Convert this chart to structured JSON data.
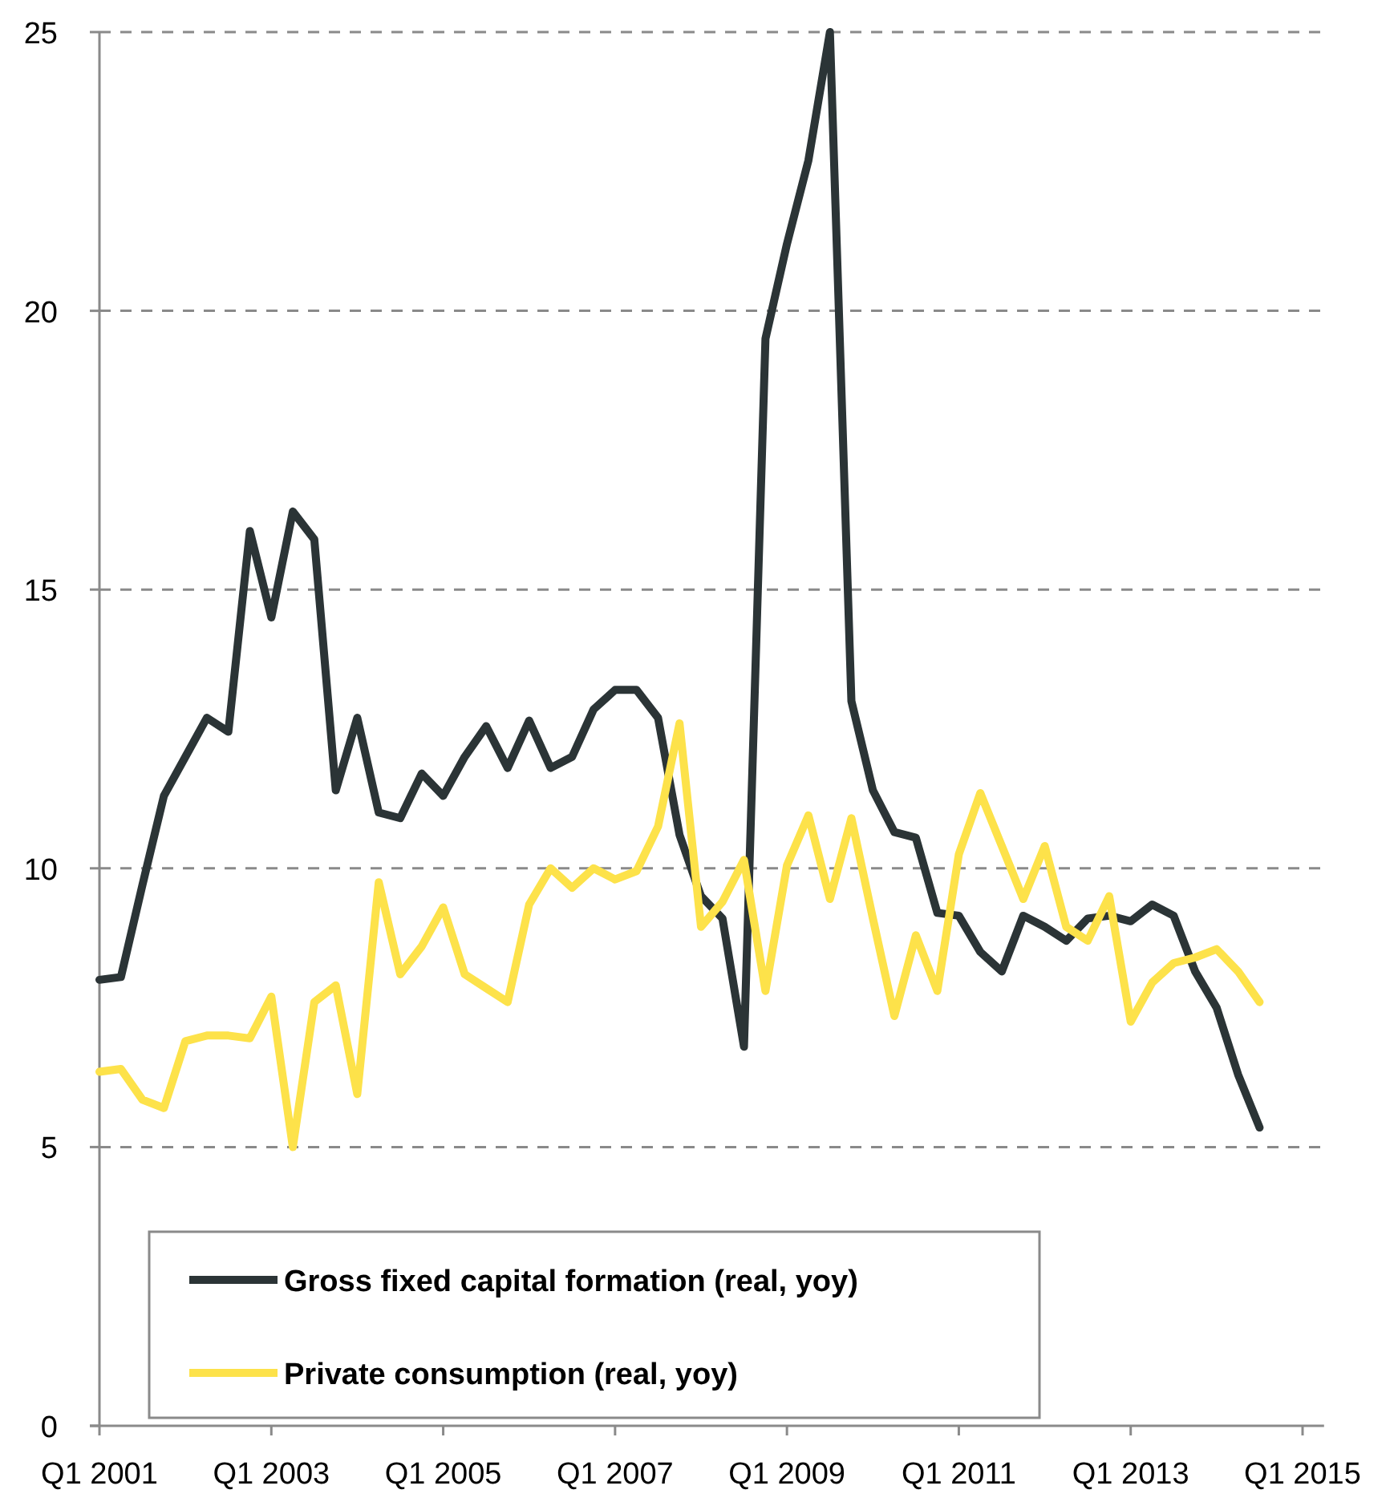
{
  "chart_data": {
    "type": "line",
    "ylim": [
      0,
      25
    ],
    "yticks": [
      0,
      5,
      10,
      15,
      20,
      25
    ],
    "categories": [
      "Q1 2001",
      null,
      null,
      null,
      null,
      null,
      null,
      null,
      "Q1 2003",
      null,
      null,
      null,
      null,
      null,
      null,
      null,
      "Q1 2005",
      null,
      null,
      null,
      null,
      null,
      null,
      null,
      "Q1 2007",
      null,
      null,
      null,
      null,
      null,
      null,
      null,
      "Q1 2009",
      null,
      null,
      null,
      null,
      null,
      null,
      null,
      "Q1 2011",
      null,
      null,
      null,
      null,
      null,
      null,
      null,
      "Q1 2013",
      null,
      null,
      null,
      null,
      null,
      null,
      null,
      "Q1 2015"
    ],
    "series": [
      {
        "name": "Gross fixed capital formation (real, yoy)",
        "color": "#2b3436",
        "values": [
          8.0,
          8.05,
          9.7,
          11.3,
          12.0,
          12.7,
          12.45,
          16.05,
          14.5,
          16.4,
          15.9,
          11.4,
          12.7,
          11.0,
          10.9,
          11.7,
          11.3,
          12.0,
          12.55,
          11.8,
          12.65,
          11.8,
          12.0,
          12.85,
          13.2,
          13.2,
          12.7,
          10.6,
          9.5,
          9.1,
          6.8,
          19.5,
          21.2,
          22.7,
          25.0,
          13.0,
          11.4,
          10.65,
          10.55,
          9.2,
          9.15,
          8.5,
          8.15,
          9.15,
          8.95,
          8.7,
          9.1,
          9.15,
          9.05,
          9.35,
          9.15,
          8.15,
          7.5,
          6.3,
          5.35,
          null,
          null
        ]
      },
      {
        "name": "Private consumption (real, yoy)",
        "color": "#fde24a",
        "values": [
          6.35,
          6.4,
          5.85,
          5.7,
          6.9,
          7.0,
          7.0,
          6.95,
          7.7,
          5.0,
          7.6,
          7.9,
          5.95,
          9.75,
          8.1,
          8.6,
          9.3,
          8.1,
          7.85,
          7.6,
          9.35,
          10.0,
          9.65,
          10.0,
          9.8,
          9.95,
          10.75,
          12.6,
          8.95,
          9.4,
          10.15,
          7.8,
          10.05,
          10.95,
          9.45,
          10.9,
          9.1,
          7.35,
          8.8,
          7.8,
          10.25,
          11.35,
          10.4,
          9.45,
          10.4,
          8.95,
          8.7,
          9.5,
          7.25,
          7.95,
          8.3,
          8.4,
          8.55,
          8.15,
          7.6,
          null,
          null
        ]
      }
    ],
    "grid": "y",
    "legend": "bottom left",
    "line_style": "solid",
    "marker": "none"
  }
}
